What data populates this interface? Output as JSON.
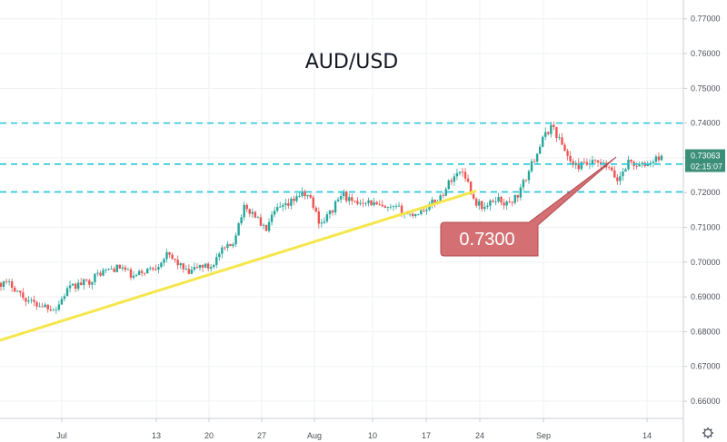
{
  "chart_data": {
    "type": "candlestick",
    "title": "AUD/USD",
    "ylim": [
      0.6505,
      0.7728
    ],
    "y_ticks": [
      "0.77000",
      "0.76000",
      "0.75000",
      "0.74000",
      "0.73000",
      "0.72000",
      "0.71000",
      "0.70000",
      "0.69000",
      "0.68000",
      "0.67000",
      "0.66000"
    ],
    "x_ticks": [
      "Jul",
      "13",
      "20",
      "27",
      "Aug",
      "10",
      "17",
      "24",
      "Sep",
      "14"
    ],
    "horizontal_lines": [
      0.74,
      0.7282,
      0.7202
    ],
    "trendline": {
      "start": 0.6775,
      "end": 0.7205
    },
    "callout": {
      "label": "0.7300"
    },
    "price_badge": {
      "price": "0.73063",
      "countdown": "02:15:07"
    },
    "anchors": [
      0.694,
      0.6935,
      0.69,
      0.688,
      0.6875,
      0.6865,
      0.692,
      0.6935,
      0.6945,
      0.697,
      0.698,
      0.6985,
      0.6955,
      0.6975,
      0.6985,
      0.702,
      0.7,
      0.6965,
      0.699,
      0.6985,
      0.703,
      0.705,
      0.7155,
      0.714,
      0.709,
      0.715,
      0.716,
      0.7195,
      0.719,
      0.711,
      0.7145,
      0.72,
      0.7165,
      0.718,
      0.7165,
      0.715,
      0.7155,
      0.7135,
      0.7145,
      0.7165,
      0.719,
      0.7245,
      0.7265,
      0.7175,
      0.7155,
      0.7185,
      0.7165,
      0.7195,
      0.7265,
      0.734,
      0.7395,
      0.7335,
      0.7275,
      0.728,
      0.7285,
      0.7275,
      0.7235,
      0.729,
      0.7275,
      0.7285,
      0.7306
    ],
    "colors": {
      "up": "#26a69a",
      "down": "#ef5350",
      "level_line": "#26c6da",
      "trendline": "#f5e64b",
      "callout_fill": "#d46f73",
      "badge": "#3b8f79"
    }
  }
}
